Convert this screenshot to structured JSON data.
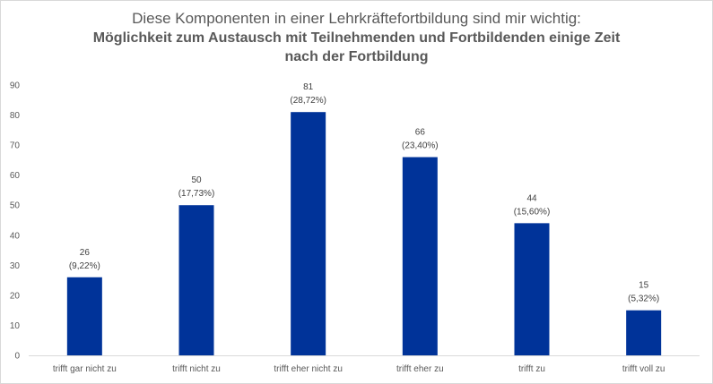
{
  "chart_data": {
    "type": "bar",
    "title": "Diese Komponenten in einer Lehrkräftefortbildung sind mir wichtig:",
    "subtitle_lines": [
      "Möglichkeit zum Austausch mit Teilnehmenden und Fortbildenden einige Zeit",
      "nach der Fortbildung"
    ],
    "categories": [
      "trifft gar nicht zu",
      "trifft nicht zu",
      "trifft eher nicht zu",
      "trifft eher zu",
      "trifft zu",
      "trifft voll zu"
    ],
    "values": [
      26,
      50,
      81,
      66,
      44,
      15
    ],
    "percent_labels": [
      "(9,22%)",
      "(17,73%)",
      "(28,72%)",
      "(23,40%)",
      "(15,60%)",
      "(5,32%)"
    ],
    "yticks": [
      "0",
      "10",
      "20",
      "30",
      "40",
      "50",
      "60",
      "70",
      "80",
      "90"
    ],
    "ylim": [
      0,
      90
    ],
    "grid": false,
    "bar_color": "#003399"
  }
}
